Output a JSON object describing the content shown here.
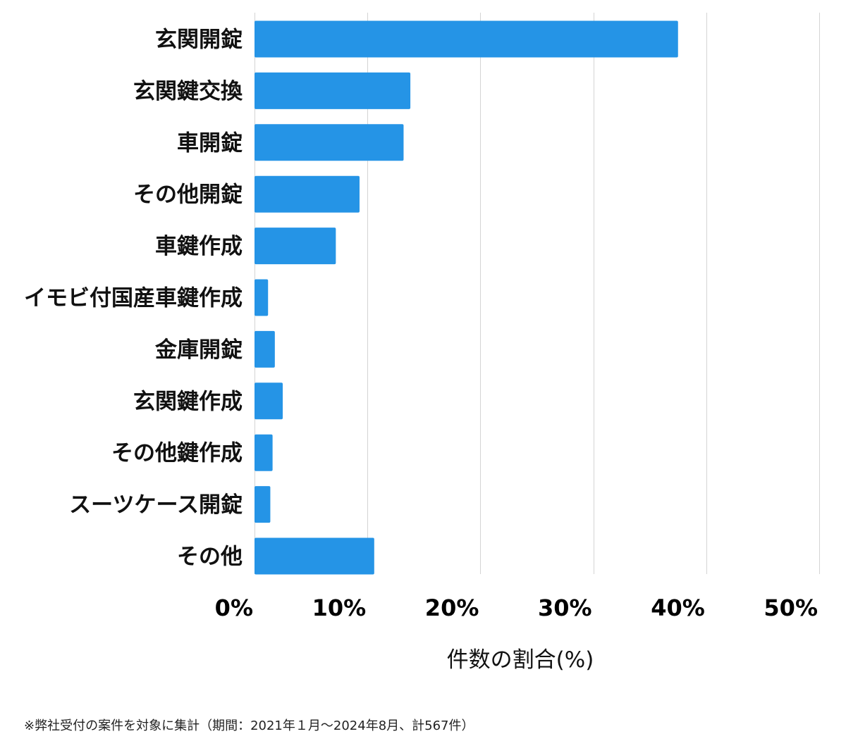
{
  "chart_data": {
    "type": "bar",
    "orientation": "horizontal",
    "categories": [
      "玄関開錠",
      "玄関鍵交換",
      "車開錠",
      "その他開錠",
      "車鍵作成",
      "イモビ付国産車鍵作成",
      "金庫開錠",
      "玄関鍵作成",
      "その他鍵作成",
      "スーツケース開錠",
      "その他"
    ],
    "values": [
      37.5,
      13.8,
      13.2,
      9.3,
      7.2,
      1.2,
      1.8,
      2.5,
      1.6,
      1.4,
      10.6
    ],
    "xlim": [
      0,
      50
    ],
    "xticks": [
      0,
      10,
      20,
      30,
      40,
      50
    ],
    "tick_labels": [
      "0%",
      "10%",
      "20%",
      "30%",
      "40%",
      "50%"
    ],
    "xlabel": "件数の割合(%)",
    "ylabel": "",
    "title": "",
    "grid": true,
    "bar_color": "#2594e6"
  },
  "footnote": "※弊社受付の案件を対象に集計（期間：2021年１月〜2024年8月、計567件）"
}
